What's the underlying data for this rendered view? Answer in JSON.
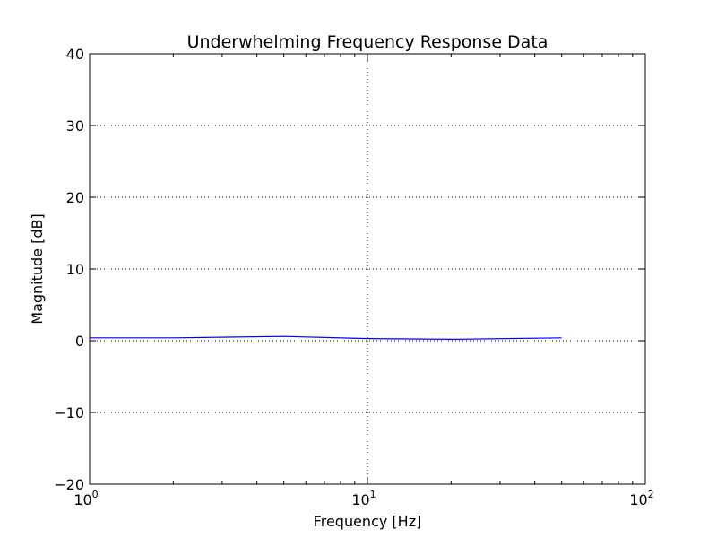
{
  "chart_data": {
    "type": "line",
    "title": "Underwhelming Frequency Response Data",
    "xlabel": "Frequency [Hz]",
    "ylabel": "Magnitude [dB]",
    "xscale": "log",
    "xlim": [
      1,
      100
    ],
    "ylim": [
      -20,
      40
    ],
    "grid": true,
    "x_ticks": [
      {
        "base": "10",
        "exp": "0"
      },
      {
        "base": "10",
        "exp": "1"
      },
      {
        "base": "10",
        "exp": "2"
      }
    ],
    "y_ticks": [
      "40",
      "30",
      "20",
      "10",
      "0",
      "−10",
      "−20"
    ],
    "series": [
      {
        "color": "#0000ff",
        "x": [
          1,
          2,
          5,
          10,
          20,
          50
        ],
        "y": [
          0.4,
          0.4,
          0.6,
          0.3,
          0.2,
          0.4
        ]
      }
    ]
  }
}
